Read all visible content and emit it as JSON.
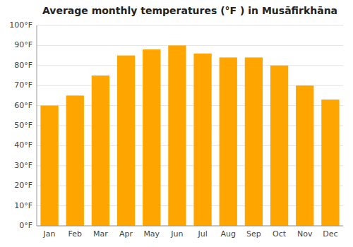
{
  "chart_data": {
    "type": "bar",
    "title": "Average monthly temperatures (°F ) in Musāfirkhāna",
    "categories": [
      "Jan",
      "Feb",
      "Mar",
      "Apr",
      "May",
      "Jun",
      "Jul",
      "Aug",
      "Sep",
      "Oct",
      "Nov",
      "Dec"
    ],
    "values": [
      60,
      65,
      75,
      85,
      88,
      90,
      86,
      84,
      84,
      80,
      70,
      63
    ],
    "color": "#FFA500",
    "ylim": [
      0,
      100
    ],
    "yticks": [
      {
        "value": 0,
        "label": "0°F"
      },
      {
        "value": 10,
        "label": "10°F"
      },
      {
        "value": 20,
        "label": "20°F"
      },
      {
        "value": 30,
        "label": "30°F"
      },
      {
        "value": 40,
        "label": "40°F"
      },
      {
        "value": 50,
        "label": "50°F"
      },
      {
        "value": 60,
        "label": "60°F"
      },
      {
        "value": 70,
        "label": "70°F"
      },
      {
        "value": 80,
        "label": "80°F"
      },
      {
        "value": 90,
        "label": "90°F"
      },
      {
        "value": 100,
        "label": "100°F"
      }
    ],
    "grid": true
  }
}
